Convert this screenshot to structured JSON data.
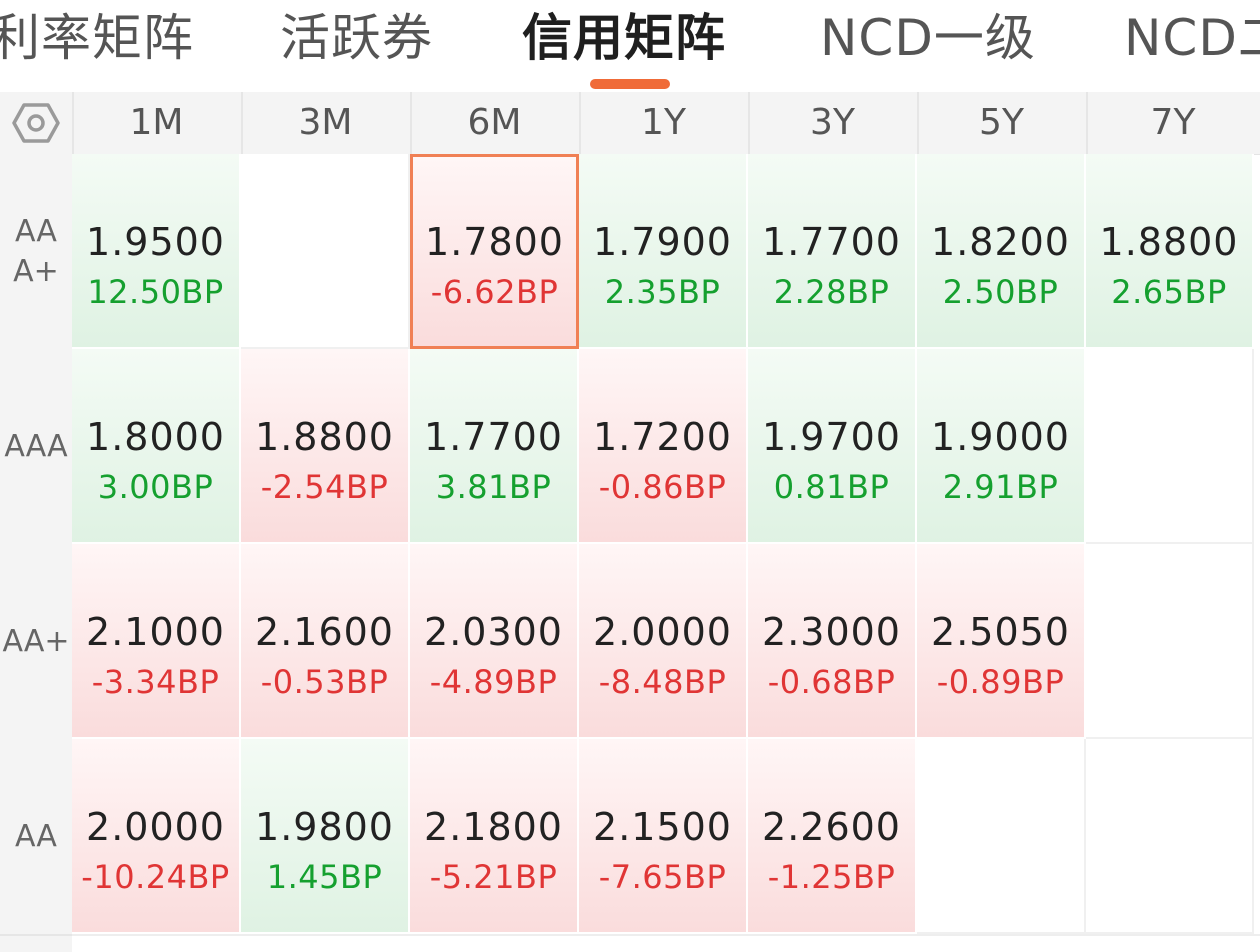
{
  "tabs": [
    {
      "label": "利率矩阵",
      "active": false
    },
    {
      "label": "活跃券",
      "active": false
    },
    {
      "label": "信用矩阵",
      "active": true
    },
    {
      "label": "NCD一级",
      "active": false
    },
    {
      "label": "NCD二",
      "active": false
    }
  ],
  "grid": {
    "settings_icon": "hexagon-settings-icon",
    "columns": [
      "1M",
      "3M",
      "6M",
      "1Y",
      "3Y",
      "5Y",
      "7Y"
    ],
    "rows": [
      {
        "label": "AAA+",
        "cells": [
          {
            "rate": "1.9500",
            "change": "12.50BP",
            "trend": "up"
          },
          null,
          {
            "rate": "1.7800",
            "change": "-6.62BP",
            "trend": "down",
            "selected": true
          },
          {
            "rate": "1.7900",
            "change": "2.35BP",
            "trend": "up"
          },
          {
            "rate": "1.7700",
            "change": "2.28BP",
            "trend": "up"
          },
          {
            "rate": "1.8200",
            "change": "2.50BP",
            "trend": "up"
          },
          {
            "rate": "1.8800",
            "change": "2.65BP",
            "trend": "up"
          }
        ]
      },
      {
        "label": "AAA",
        "cells": [
          {
            "rate": "1.8000",
            "change": "3.00BP",
            "trend": "up"
          },
          {
            "rate": "1.8800",
            "change": "-2.54BP",
            "trend": "down"
          },
          {
            "rate": "1.7700",
            "change": "3.81BP",
            "trend": "up"
          },
          {
            "rate": "1.7200",
            "change": "-0.86BP",
            "trend": "down"
          },
          {
            "rate": "1.9700",
            "change": "0.81BP",
            "trend": "up"
          },
          {
            "rate": "1.9000",
            "change": "2.91BP",
            "trend": "up"
          },
          null
        ]
      },
      {
        "label": "AA+",
        "cells": [
          {
            "rate": "2.1000",
            "change": "-3.34BP",
            "trend": "down"
          },
          {
            "rate": "2.1600",
            "change": "-0.53BP",
            "trend": "down"
          },
          {
            "rate": "2.0300",
            "change": "-4.89BP",
            "trend": "down"
          },
          {
            "rate": "2.0000",
            "change": "-8.48BP",
            "trend": "down"
          },
          {
            "rate": "2.3000",
            "change": "-0.68BP",
            "trend": "down"
          },
          {
            "rate": "2.5050",
            "change": "-0.89BP",
            "trend": "down"
          },
          null
        ]
      },
      {
        "label": "AA",
        "cells": [
          {
            "rate": "2.0000",
            "change": "-10.24BP",
            "trend": "down"
          },
          {
            "rate": "1.9800",
            "change": "1.45BP",
            "trend": "up"
          },
          {
            "rate": "2.1800",
            "change": "-5.21BP",
            "trend": "down"
          },
          {
            "rate": "2.1500",
            "change": "-7.65BP",
            "trend": "down"
          },
          {
            "rate": "2.2600",
            "change": "-1.25BP",
            "trend": "down"
          },
          null,
          null
        ]
      }
    ]
  },
  "colors": {
    "accent": "#f06b38",
    "up": "#15a02f",
    "down": "#e03535",
    "selected_border": "#f08055"
  }
}
